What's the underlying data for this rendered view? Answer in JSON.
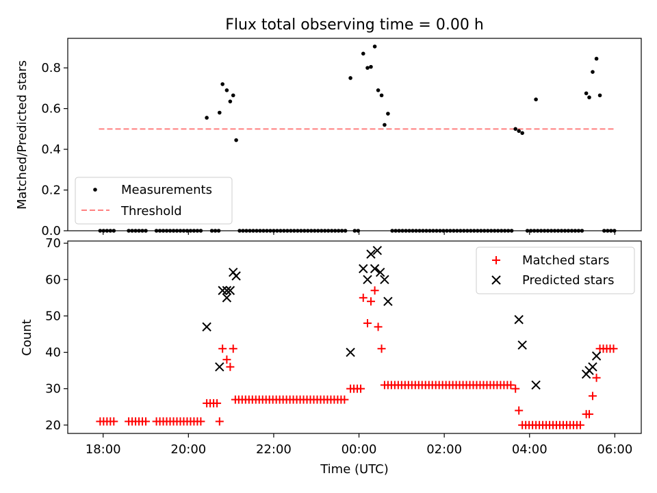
{
  "chart_data": [
    {
      "type": "scatter",
      "title": "Flux total observing time = 0.00 h",
      "xlabel": "",
      "ylabel": "Matched/Predicted stars",
      "xlim": [
        17.17,
        30.62
      ],
      "ylim": [
        0.0,
        0.945
      ],
      "yticks": [
        0.0,
        0.2,
        0.4,
        0.6,
        0.8
      ],
      "ytick_labels": [
        "0.0",
        "0.2",
        "0.4",
        "0.6",
        "0.8"
      ],
      "xticks": [
        18,
        20,
        22,
        24,
        26,
        28,
        30
      ],
      "legend_position": "lower-left",
      "legend": [
        "Measurements",
        "Threshold"
      ],
      "threshold": {
        "name": "Threshold",
        "value": 0.5,
        "x_range": [
          17.9,
          30.0
        ],
        "color": "#ff7f7f"
      },
      "series": [
        {
          "name": "Measurements",
          "color": "#000000",
          "points": [
            [
              20.43,
              0.555
            ],
            [
              20.73,
              0.58
            ],
            [
              20.8,
              0.72
            ],
            [
              20.9,
              0.69
            ],
            [
              20.98,
              0.635
            ],
            [
              21.05,
              0.665
            ],
            [
              21.12,
              0.445
            ],
            [
              23.8,
              0.75
            ],
            [
              24.1,
              0.87
            ],
            [
              24.2,
              0.8
            ],
            [
              24.28,
              0.805
            ],
            [
              24.37,
              0.905
            ],
            [
              24.45,
              0.69
            ],
            [
              24.53,
              0.665
            ],
            [
              24.6,
              0.52
            ],
            [
              24.68,
              0.575
            ],
            [
              27.67,
              0.5
            ],
            [
              27.75,
              0.49
            ],
            [
              27.83,
              0.48
            ],
            [
              28.15,
              0.645
            ],
            [
              29.33,
              0.675
            ],
            [
              29.4,
              0.655
            ],
            [
              29.48,
              0.78
            ],
            [
              29.57,
              0.845
            ],
            [
              29.65,
              0.665
            ]
          ],
          "zero_ranges": [
            [
              17.93,
              18.25
            ],
            [
              18.6,
              19.05
            ],
            [
              19.25,
              20.32
            ],
            [
              20.55,
              20.72
            ],
            [
              21.2,
              23.72
            ],
            [
              23.9,
              24.05
            ],
            [
              24.78,
              27.6
            ],
            [
              27.95,
              29.25
            ],
            [
              29.75,
              30.0
            ]
          ]
        }
      ]
    },
    {
      "type": "scatter",
      "title": "",
      "xlabel": "Time (UTC)",
      "ylabel": "Count",
      "xlim": [
        17.17,
        30.62
      ],
      "ylim": [
        17.7,
        70.6
      ],
      "yticks": [
        20,
        30,
        40,
        50,
        60,
        70
      ],
      "ytick_labels": [
        "20",
        "30",
        "40",
        "50",
        "60",
        "70"
      ],
      "xticks": [
        18,
        20,
        22,
        24,
        26,
        28,
        30
      ],
      "xtick_labels": [
        "18:00",
        "20:00",
        "22:00",
        "00:00",
        "02:00",
        "04:00",
        "06:00"
      ],
      "legend_position": "upper-right",
      "legend": [
        "Matched stars",
        "Predicted stars"
      ],
      "series": [
        {
          "name": "Matched stars",
          "marker": "plus",
          "color": "#ff0000",
          "points": [
            [
              20.73,
              21
            ],
            [
              20.8,
              41
            ],
            [
              20.9,
              38
            ],
            [
              20.98,
              36
            ],
            [
              21.05,
              41
            ],
            [
              24.1,
              55
            ],
            [
              24.2,
              48
            ],
            [
              24.28,
              54
            ],
            [
              24.37,
              57
            ],
            [
              24.45,
              47
            ],
            [
              24.53,
              41
            ],
            [
              27.67,
              30
            ],
            [
              27.75,
              24
            ],
            [
              29.33,
              23
            ],
            [
              29.4,
              23
            ],
            [
              29.48,
              28
            ],
            [
              29.57,
              33
            ]
          ],
          "runs": [
            {
              "from": 17.93,
              "to": 18.25,
              "value": 21
            },
            {
              "from": 18.6,
              "to": 19.05,
              "value": 21
            },
            {
              "from": 19.25,
              "to": 20.32,
              "value": 21
            },
            {
              "from": 20.43,
              "to": 20.72,
              "value": 26
            },
            {
              "from": 21.1,
              "to": 23.72,
              "value": 27
            },
            {
              "from": 23.8,
              "to": 24.05,
              "value": 30
            },
            {
              "from": 24.6,
              "to": 27.6,
              "value": 31
            },
            {
              "from": 27.83,
              "to": 29.25,
              "value": 20
            },
            {
              "from": 29.65,
              "to": 30.0,
              "value": 41
            }
          ]
        },
        {
          "name": "Predicted stars",
          "marker": "x",
          "color": "#000000",
          "points": [
            [
              20.43,
              47
            ],
            [
              20.73,
              36
            ],
            [
              20.8,
              57
            ],
            [
              20.9,
              55
            ],
            [
              20.9,
              57
            ],
            [
              20.98,
              57
            ],
            [
              21.05,
              62
            ],
            [
              21.12,
              61
            ],
            [
              23.8,
              40
            ],
            [
              24.1,
              63
            ],
            [
              24.2,
              60
            ],
            [
              24.28,
              67
            ],
            [
              24.37,
              63
            ],
            [
              24.43,
              68
            ],
            [
              24.5,
              62
            ],
            [
              24.6,
              60
            ],
            [
              24.68,
              54
            ],
            [
              27.75,
              49
            ],
            [
              27.83,
              42
            ],
            [
              28.15,
              31
            ],
            [
              29.33,
              34
            ],
            [
              29.4,
              35
            ],
            [
              29.48,
              36
            ],
            [
              29.57,
              39
            ]
          ]
        }
      ]
    }
  ]
}
